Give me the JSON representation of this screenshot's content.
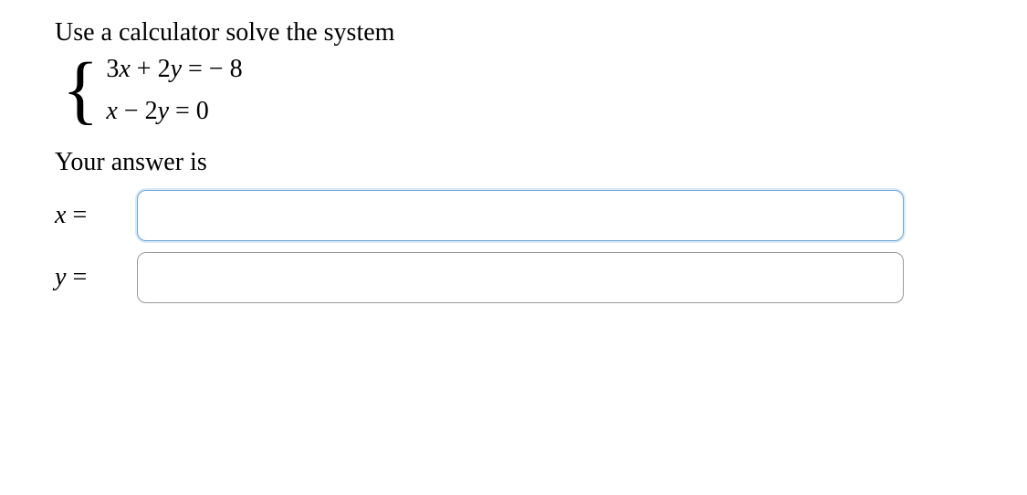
{
  "instruction": "Use a calculator solve the system",
  "system": {
    "eq1": {
      "lhs_coeff1": "3",
      "lhs_var1": "x",
      "lhs_op": " + ",
      "lhs_coeff2": "2",
      "lhs_var2": "y",
      "equals": " = ",
      "rhs_sign": " − ",
      "rhs_value": "8"
    },
    "eq2": {
      "lhs_var1": "x",
      "lhs_op": " − ",
      "lhs_coeff2": "2",
      "lhs_var2": "y",
      "equals": " = ",
      "rhs_value": "0"
    }
  },
  "answer_label": "Your answer is",
  "answers": {
    "x_label_var": "x",
    "x_label_eq": " = ",
    "x_value": "",
    "y_label_var": "y",
    "y_label_eq": " = ",
    "y_value": ""
  },
  "styling": {
    "background": "#ffffff",
    "text_color": "#000000",
    "input_border": "#999999",
    "input_focus_border": "#6ba6d8",
    "input_border_radius": 10,
    "font_family_body": "Georgia, 'Times New Roman', serif",
    "font_family_math": "'Times New Roman', serif",
    "font_size_body": 28
  }
}
